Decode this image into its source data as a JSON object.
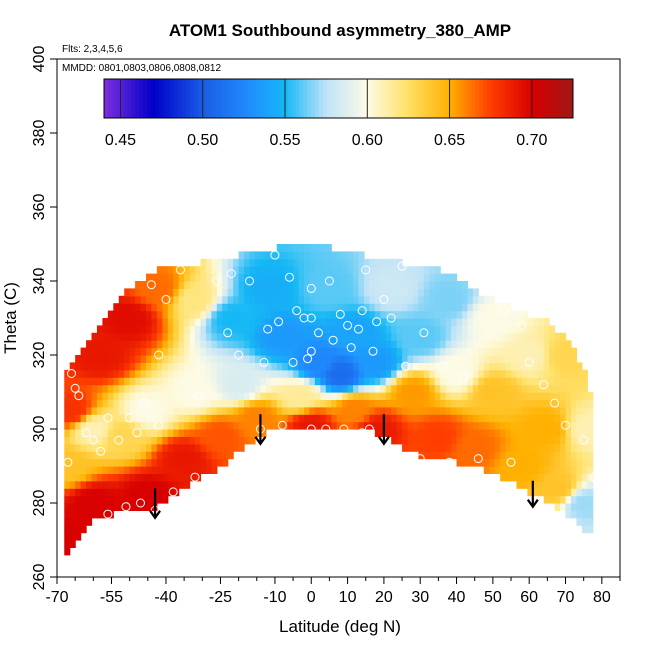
{
  "chart_data": {
    "type": "heatmap",
    "title": "ATOM1 Southbound asymmetry_380_AMP",
    "subtitle_flights": "Flts: 2,3,4,5,6",
    "subtitle_dates": "MMDD: 0801,0803,0806,0808,0812",
    "xlabel": "Latitude (deg N)",
    "ylabel": "Theta (C)",
    "xlim": [
      -70,
      85
    ],
    "ylim": [
      260,
      400
    ],
    "x_ticks": [
      -70,
      -55,
      -40,
      -25,
      -10,
      0,
      10,
      20,
      30,
      40,
      50,
      60,
      70,
      80
    ],
    "x_minor_ticks": [
      -65,
      -60,
      -50,
      -45,
      -35,
      -30,
      -20,
      -15,
      -5,
      5,
      15,
      25,
      35,
      45,
      55,
      65,
      75,
      85
    ],
    "y_ticks": [
      260,
      280,
      300,
      320,
      340,
      360,
      380,
      400
    ],
    "colorbar": {
      "min": 0.44,
      "max": 0.725,
      "ticks": [
        0.45,
        0.5,
        0.55,
        0.6,
        0.65,
        0.7
      ],
      "tick_labels": [
        "0.45",
        "0.50",
        "0.55",
        "0.60",
        "0.65",
        "0.70"
      ],
      "stops": [
        {
          "v": 0.44,
          "c": "#7e2fe0"
        },
        {
          "v": 0.47,
          "c": "#0000c8"
        },
        {
          "v": 0.5,
          "c": "#1a5ce6"
        },
        {
          "v": 0.53,
          "c": "#1f90ff"
        },
        {
          "v": 0.55,
          "c": "#15b8f5"
        },
        {
          "v": 0.575,
          "c": "#bfe3f7"
        },
        {
          "v": 0.6,
          "c": "#fdfbe6"
        },
        {
          "v": 0.625,
          "c": "#ffe066"
        },
        {
          "v": 0.65,
          "c": "#ffb000"
        },
        {
          "v": 0.675,
          "c": "#ff3d00"
        },
        {
          "v": 0.7,
          "c": "#d80000"
        },
        {
          "v": 0.725,
          "c": "#a01818"
        }
      ]
    },
    "field_columns": [
      {
        "lat": -68,
        "bottom": 266,
        "top": 313
      },
      {
        "lat": -65,
        "bottom": 270,
        "top": 318
      },
      {
        "lat": -62,
        "bottom": 274,
        "top": 322
      },
      {
        "lat": -58,
        "bottom": 276,
        "top": 327
      },
      {
        "lat": -55,
        "bottom": 277,
        "top": 331
      },
      {
        "lat": -50,
        "bottom": 278,
        "top": 337
      },
      {
        "lat": -45,
        "bottom": 277,
        "top": 341
      },
      {
        "lat": -40,
        "bottom": 281,
        "top": 343
      },
      {
        "lat": -35,
        "bottom": 284,
        "top": 343
      },
      {
        "lat": -30,
        "bottom": 287,
        "top": 344
      },
      {
        "lat": -25,
        "bottom": 290,
        "top": 345
      },
      {
        "lat": -20,
        "bottom": 294,
        "top": 346
      },
      {
        "lat": -15,
        "bottom": 298,
        "top": 347
      },
      {
        "lat": -10,
        "bottom": 300,
        "top": 348
      },
      {
        "lat": -5,
        "bottom": 300,
        "top": 349
      },
      {
        "lat": 0,
        "bottom": 299,
        "top": 349
      },
      {
        "lat": 5,
        "bottom": 300,
        "top": 348
      },
      {
        "lat": 10,
        "bottom": 300,
        "top": 347
      },
      {
        "lat": 15,
        "bottom": 300,
        "top": 346
      },
      {
        "lat": 20,
        "bottom": 298,
        "top": 345
      },
      {
        "lat": 25,
        "bottom": 295,
        "top": 344
      },
      {
        "lat": 30,
        "bottom": 293,
        "top": 343
      },
      {
        "lat": 35,
        "bottom": 292,
        "top": 342
      },
      {
        "lat": 40,
        "bottom": 291,
        "top": 340
      },
      {
        "lat": 45,
        "bottom": 290,
        "top": 337
      },
      {
        "lat": 50,
        "bottom": 288,
        "top": 334
      },
      {
        "lat": 55,
        "bottom": 286,
        "top": 332
      },
      {
        "lat": 60,
        "bottom": 283,
        "top": 330
      },
      {
        "lat": 65,
        "bottom": 280,
        "top": 328
      },
      {
        "lat": 70,
        "bottom": 277,
        "top": 324
      },
      {
        "lat": 75,
        "bottom": 273,
        "top": 316
      },
      {
        "lat": 78,
        "bottom": 272,
        "top": 305
      }
    ],
    "field_anchors": [
      {
        "lat": -67,
        "theta": 270,
        "v": 0.7
      },
      {
        "lat": -67,
        "theta": 290,
        "v": 0.64
      },
      {
        "lat": -66,
        "theta": 305,
        "v": 0.68
      },
      {
        "lat": -60,
        "theta": 280,
        "v": 0.7
      },
      {
        "lat": -60,
        "theta": 300,
        "v": 0.61
      },
      {
        "lat": -58,
        "theta": 320,
        "v": 0.69
      },
      {
        "lat": -52,
        "theta": 298,
        "v": 0.63
      },
      {
        "lat": -50,
        "theta": 330,
        "v": 0.695
      },
      {
        "lat": -45,
        "theta": 282,
        "v": 0.7
      },
      {
        "lat": -45,
        "theta": 305,
        "v": 0.6
      },
      {
        "lat": -42,
        "theta": 338,
        "v": 0.665
      },
      {
        "lat": -35,
        "theta": 292,
        "v": 0.69
      },
      {
        "lat": -32,
        "theta": 310,
        "v": 0.6
      },
      {
        "lat": -32,
        "theta": 335,
        "v": 0.62
      },
      {
        "lat": -25,
        "theta": 298,
        "v": 0.67
      },
      {
        "lat": -22,
        "theta": 330,
        "v": 0.55
      },
      {
        "lat": -20,
        "theta": 312,
        "v": 0.585
      },
      {
        "lat": -15,
        "theta": 303,
        "v": 0.66
      },
      {
        "lat": -12,
        "theta": 338,
        "v": 0.545
      },
      {
        "lat": -8,
        "theta": 325,
        "v": 0.535
      },
      {
        "lat": -3,
        "theta": 309,
        "v": 0.615
      },
      {
        "lat": 0,
        "theta": 301,
        "v": 0.69
      },
      {
        "lat": 2,
        "theta": 318,
        "v": 0.525
      },
      {
        "lat": 5,
        "theta": 338,
        "v": 0.56
      },
      {
        "lat": 8,
        "theta": 315,
        "v": 0.51
      },
      {
        "lat": 12,
        "theta": 305,
        "v": 0.66
      },
      {
        "lat": 12,
        "theta": 326,
        "v": 0.54
      },
      {
        "lat": 18,
        "theta": 300,
        "v": 0.69
      },
      {
        "lat": 18,
        "theta": 318,
        "v": 0.535
      },
      {
        "lat": 22,
        "theta": 338,
        "v": 0.58
      },
      {
        "lat": 28,
        "theta": 310,
        "v": 0.655
      },
      {
        "lat": 30,
        "theta": 325,
        "v": 0.56
      },
      {
        "lat": 35,
        "theta": 298,
        "v": 0.675
      },
      {
        "lat": 38,
        "theta": 335,
        "v": 0.565
      },
      {
        "lat": 40,
        "theta": 315,
        "v": 0.6
      },
      {
        "lat": 45,
        "theta": 295,
        "v": 0.665
      },
      {
        "lat": 50,
        "theta": 310,
        "v": 0.64
      },
      {
        "lat": 50,
        "theta": 330,
        "v": 0.6
      },
      {
        "lat": 58,
        "theta": 290,
        "v": 0.65
      },
      {
        "lat": 60,
        "theta": 320,
        "v": 0.61
      },
      {
        "lat": 65,
        "theta": 300,
        "v": 0.65
      },
      {
        "lat": 68,
        "theta": 284,
        "v": 0.64
      },
      {
        "lat": 70,
        "theta": 320,
        "v": 0.63
      },
      {
        "lat": 75,
        "theta": 280,
        "v": 0.57
      },
      {
        "lat": 76,
        "theta": 300,
        "v": 0.61
      }
    ],
    "observations": [
      {
        "lat": -67,
        "theta": 291
      },
      {
        "lat": -66,
        "theta": 315
      },
      {
        "lat": -65,
        "theta": 311
      },
      {
        "lat": -64,
        "theta": 309
      },
      {
        "lat": -62,
        "theta": 299
      },
      {
        "lat": -60,
        "theta": 297
      },
      {
        "lat": -58,
        "theta": 294
      },
      {
        "lat": -56,
        "theta": 277
      },
      {
        "lat": -56,
        "theta": 303
      },
      {
        "lat": -53,
        "theta": 297
      },
      {
        "lat": -51,
        "theta": 279
      },
      {
        "lat": -50,
        "theta": 303
      },
      {
        "lat": -48,
        "theta": 299
      },
      {
        "lat": -47,
        "theta": 280
      },
      {
        "lat": -46,
        "theta": 307
      },
      {
        "lat": -44,
        "theta": 339
      },
      {
        "lat": -43,
        "theta": 278
      },
      {
        "lat": -42,
        "theta": 301
      },
      {
        "lat": -42,
        "theta": 320
      },
      {
        "lat": -40,
        "theta": 335
      },
      {
        "lat": -38,
        "theta": 283
      },
      {
        "lat": -36,
        "theta": 343
      },
      {
        "lat": -32,
        "theta": 287
      },
      {
        "lat": -31,
        "theta": 309
      },
      {
        "lat": -26,
        "theta": 340
      },
      {
        "lat": -23,
        "theta": 326
      },
      {
        "lat": -22,
        "theta": 342
      },
      {
        "lat": -20,
        "theta": 320
      },
      {
        "lat": -17,
        "theta": 340
      },
      {
        "lat": -14,
        "theta": 300
      },
      {
        "lat": -13,
        "theta": 318
      },
      {
        "lat": -12,
        "theta": 327
      },
      {
        "lat": -10,
        "theta": 347
      },
      {
        "lat": -9,
        "theta": 329
      },
      {
        "lat": -8,
        "theta": 301
      },
      {
        "lat": -6,
        "theta": 341
      },
      {
        "lat": -5,
        "theta": 318
      },
      {
        "lat": -4,
        "theta": 332
      },
      {
        "lat": -2,
        "theta": 330
      },
      {
        "lat": -1,
        "theta": 319
      },
      {
        "lat": 0,
        "theta": 300
      },
      {
        "lat": 0,
        "theta": 321
      },
      {
        "lat": 0,
        "theta": 330
      },
      {
        "lat": 0,
        "theta": 338
      },
      {
        "lat": 2,
        "theta": 326
      },
      {
        "lat": 4,
        "theta": 300
      },
      {
        "lat": 5,
        "theta": 340
      },
      {
        "lat": 6,
        "theta": 324
      },
      {
        "lat": 8,
        "theta": 331
      },
      {
        "lat": 9,
        "theta": 300
      },
      {
        "lat": 10,
        "theta": 328
      },
      {
        "lat": 11,
        "theta": 322
      },
      {
        "lat": 13,
        "theta": 327
      },
      {
        "lat": 14,
        "theta": 299
      },
      {
        "lat": 14,
        "theta": 332
      },
      {
        "lat": 15,
        "theta": 343
      },
      {
        "lat": 16,
        "theta": 300
      },
      {
        "lat": 17,
        "theta": 321
      },
      {
        "lat": 18,
        "theta": 329
      },
      {
        "lat": 20,
        "theta": 335
      },
      {
        "lat": 22,
        "theta": 330
      },
      {
        "lat": 25,
        "theta": 344
      },
      {
        "lat": 26,
        "theta": 317
      },
      {
        "lat": 30,
        "theta": 292
      },
      {
        "lat": 31,
        "theta": 326
      },
      {
        "lat": 36,
        "theta": 317
      },
      {
        "lat": 38,
        "theta": 291
      },
      {
        "lat": 42,
        "theta": 314
      },
      {
        "lat": 46,
        "theta": 292
      },
      {
        "lat": 48,
        "theta": 341
      },
      {
        "lat": 53,
        "theta": 332
      },
      {
        "lat": 55,
        "theta": 291
      },
      {
        "lat": 58,
        "theta": 328
      },
      {
        "lat": 60,
        "theta": 318
      },
      {
        "lat": 64,
        "theta": 312
      },
      {
        "lat": 67,
        "theta": 307
      },
      {
        "lat": 70,
        "theta": 301
      },
      {
        "lat": 72,
        "theta": 325
      },
      {
        "lat": 75,
        "theta": 297
      },
      {
        "lat": 78,
        "theta": 287
      }
    ],
    "arrows": [
      {
        "lat": -43,
        "theta_top": 284,
        "theta_tip": 276
      },
      {
        "lat": -14,
        "theta_top": 304,
        "theta_tip": 296
      },
      {
        "lat": 20,
        "theta_top": 304,
        "theta_tip": 296
      },
      {
        "lat": 61,
        "theta_top": 286,
        "theta_tip": 279
      }
    ]
  }
}
